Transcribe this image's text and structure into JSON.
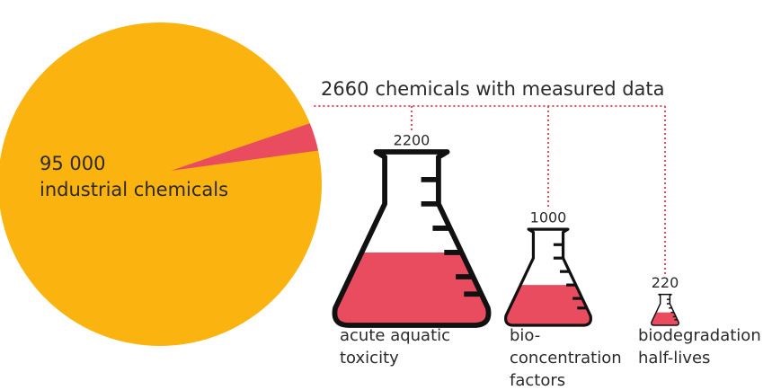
{
  "pie": {
    "total": {
      "value": 95000,
      "label": "95 000"
    },
    "total_caption": "industrial chemicals",
    "subset": 2660,
    "subset_caption": "chemicals with measured data",
    "colors": {
      "total": "#fbb40f",
      "subset": "#e94c5f"
    }
  },
  "flasks": [
    {
      "value": 2200,
      "caption": [
        "acute aquatic",
        "toxicity"
      ]
    },
    {
      "value": 1000,
      "caption": [
        "bio-",
        "concentration",
        "factors"
      ]
    },
    {
      "value": 220,
      "caption": [
        "biodegradation",
        "half-lives"
      ]
    }
  ]
}
